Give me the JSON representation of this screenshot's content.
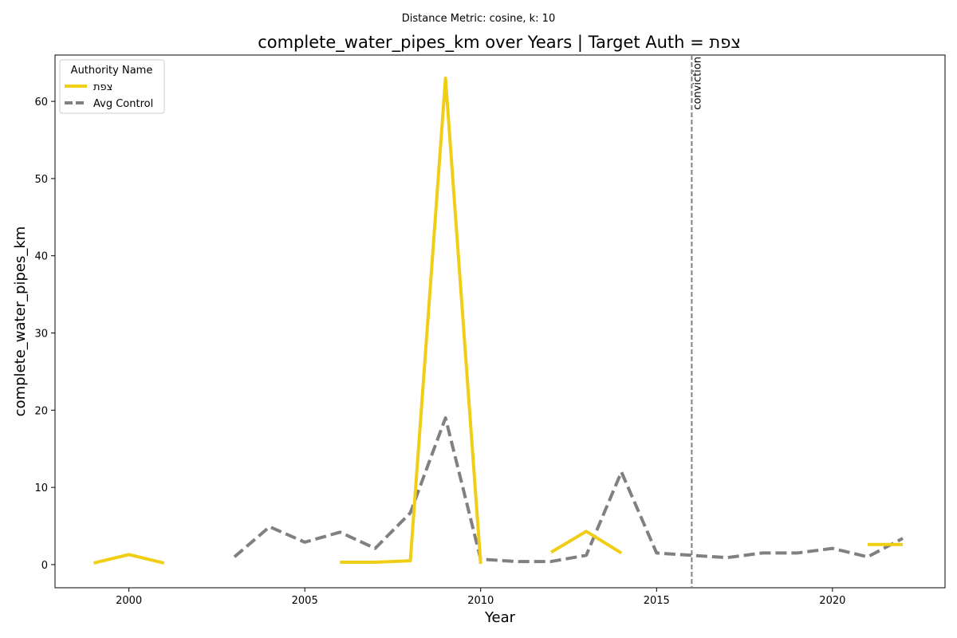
{
  "chart_data": {
    "type": "line",
    "suptitle": "Distance Metric: cosine, k: 10",
    "title": "complete_water_pipes_km over Years | Target Auth = צפת",
    "xlabel": "Year",
    "ylabel": "complete_water_pipes_km",
    "xlim": [
      1997.9,
      2023.2
    ],
    "ylim": [
      -3,
      66
    ],
    "xticks": [
      2000,
      2005,
      2010,
      2015,
      2020
    ],
    "yticks": [
      0,
      10,
      20,
      30,
      40,
      50,
      60
    ],
    "grid": false,
    "legend": {
      "title": "Authority Name",
      "placement": "top-left"
    },
    "series": [
      {
        "name": "צפת",
        "color": "#f0ce16",
        "style": "solid",
        "points": [
          [
            1999,
            0.2
          ],
          [
            2000,
            1.3
          ],
          [
            2001,
            0.2
          ],
          [
            2002,
            null
          ],
          [
            2003,
            null
          ],
          [
            2004,
            null
          ],
          [
            2005,
            null
          ],
          [
            2006,
            0.3
          ],
          [
            2007,
            0.3
          ],
          [
            2008,
            0.5
          ],
          [
            2009,
            63
          ],
          [
            2010,
            0.1
          ],
          [
            2011,
            null
          ],
          [
            2012,
            1.6
          ],
          [
            2013,
            4.3
          ],
          [
            2014,
            1.5
          ],
          [
            2015,
            null
          ],
          [
            2016,
            null
          ],
          [
            2017,
            null
          ],
          [
            2018,
            null
          ],
          [
            2019,
            null
          ],
          [
            2020,
            null
          ],
          [
            2021,
            2.6
          ],
          [
            2022,
            2.6
          ]
        ]
      },
      {
        "name": "Avg Control",
        "color": "#808080",
        "style": "dashed",
        "points": [
          [
            2003,
            1.0
          ],
          [
            2004,
            4.9
          ],
          [
            2005,
            2.9
          ],
          [
            2006,
            4.2
          ],
          [
            2007,
            2.1
          ],
          [
            2008,
            6.7
          ],
          [
            2009,
            19.0
          ],
          [
            2010,
            0.7
          ],
          [
            2011,
            0.4
          ],
          [
            2012,
            0.4
          ],
          [
            2013,
            1.2
          ],
          [
            2014,
            12.0
          ],
          [
            2015,
            1.5
          ],
          [
            2016,
            1.2
          ],
          [
            2017,
            0.9
          ],
          [
            2018,
            1.5
          ],
          [
            2019,
            1.5
          ],
          [
            2020,
            2.1
          ],
          [
            2021,
            1.0
          ],
          [
            2022,
            3.4
          ]
        ]
      }
    ],
    "annotations": [
      {
        "type": "vline",
        "x": 2016,
        "label": "conviction",
        "color": "#808080",
        "style": "dashed"
      }
    ]
  }
}
